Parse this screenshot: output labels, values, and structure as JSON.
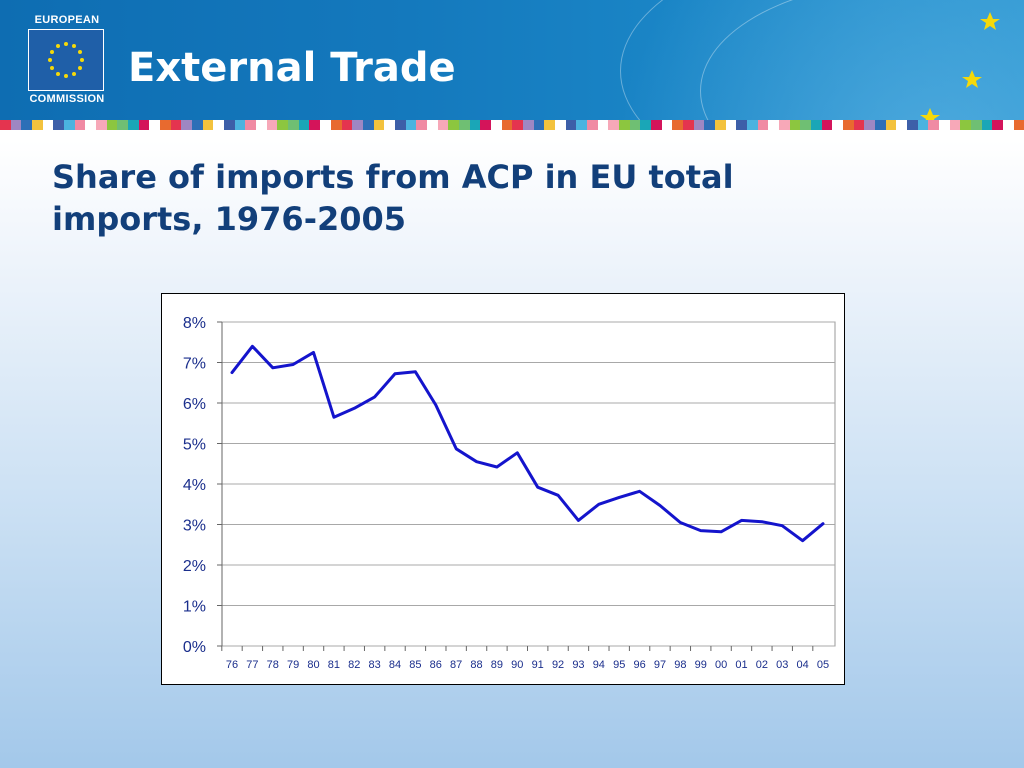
{
  "header": {
    "logo_line1": "EUROPEAN",
    "logo_line2": "COMMISSION",
    "title": "External Trade"
  },
  "slide": {
    "heading": "Share of imports from ACP in EU total imports, 1976-2005"
  },
  "colors": {
    "banner": "#1479bd",
    "heading": "#123f7a",
    "line": "#1414cc",
    "tick_text": "#1a2e8c"
  },
  "chart_data": {
    "type": "line",
    "title": "",
    "xlabel": "",
    "ylabel": "",
    "x": [
      "76",
      "77",
      "78",
      "79",
      "80",
      "81",
      "82",
      "83",
      "84",
      "85",
      "86",
      "87",
      "88",
      "89",
      "90",
      "91",
      "92",
      "93",
      "94",
      "95",
      "96",
      "97",
      "98",
      "99",
      "00",
      "01",
      "02",
      "03",
      "04",
      "05"
    ],
    "series": [
      {
        "values": [
          6.75,
          7.4,
          6.87,
          6.95,
          7.25,
          5.65,
          5.87,
          6.15,
          6.72,
          6.77,
          5.95,
          4.87,
          4.55,
          4.42,
          4.77,
          3.92,
          3.72,
          3.1,
          3.5,
          3.67,
          3.82,
          3.47,
          3.05,
          2.85,
          2.82,
          3.1,
          3.07,
          2.97,
          2.6,
          3.02
        ]
      }
    ],
    "ylim": [
      0,
      8
    ],
    "yticks": [
      "0%",
      "1%",
      "2%",
      "3%",
      "4%",
      "5%",
      "6%",
      "7%",
      "8%"
    ],
    "grid": true
  }
}
